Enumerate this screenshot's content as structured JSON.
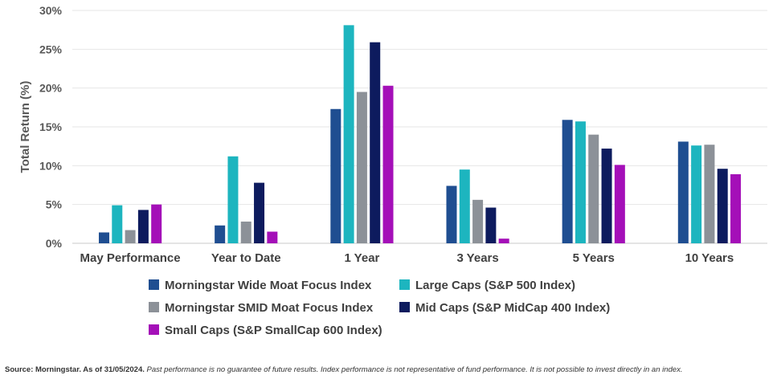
{
  "chart_data": {
    "type": "bar",
    "ylabel": "Total Return (%)",
    "ylim": [
      0,
      30
    ],
    "yticks": [
      "0%",
      "5%",
      "10%",
      "15%",
      "20%",
      "25%",
      "30%"
    ],
    "grid": true,
    "legend_position": "bottom",
    "categories": [
      "May Performance",
      "Year to Date",
      "1 Year",
      "3 Years",
      "5 Years",
      "10 Years"
    ],
    "series": [
      {
        "name": "Morningstar Wide Moat Focus Index",
        "color": "#1f4e91",
        "values": [
          1.4,
          2.3,
          17.3,
          7.4,
          15.9,
          13.1
        ]
      },
      {
        "name": "Large Caps (S&P 500 Index)",
        "color": "#1db5bf",
        "values": [
          4.9,
          11.2,
          28.1,
          9.5,
          15.7,
          12.6
        ]
      },
      {
        "name": "Morningstar SMID Moat Focus Index",
        "color": "#8c9198",
        "values": [
          1.7,
          2.8,
          19.5,
          5.6,
          14.0,
          12.7
        ]
      },
      {
        "name": "Mid Caps (S&P MidCap 400 Index)",
        "color": "#0d1b5e",
        "values": [
          4.3,
          7.8,
          25.9,
          4.6,
          12.2,
          9.6
        ]
      },
      {
        "name": "Small Caps (S&P SmallCap 600 Index)",
        "color": "#a40fb8",
        "values": [
          5.0,
          1.5,
          20.3,
          0.6,
          10.1,
          8.9
        ]
      }
    ]
  },
  "footnote": {
    "source_label": "Source: Morningstar. As of 31/05/2024.",
    "text": " Past performance is no guarantee of future results. Index performance is not representative of fund performance. It is not possible to invest directly in an index."
  }
}
